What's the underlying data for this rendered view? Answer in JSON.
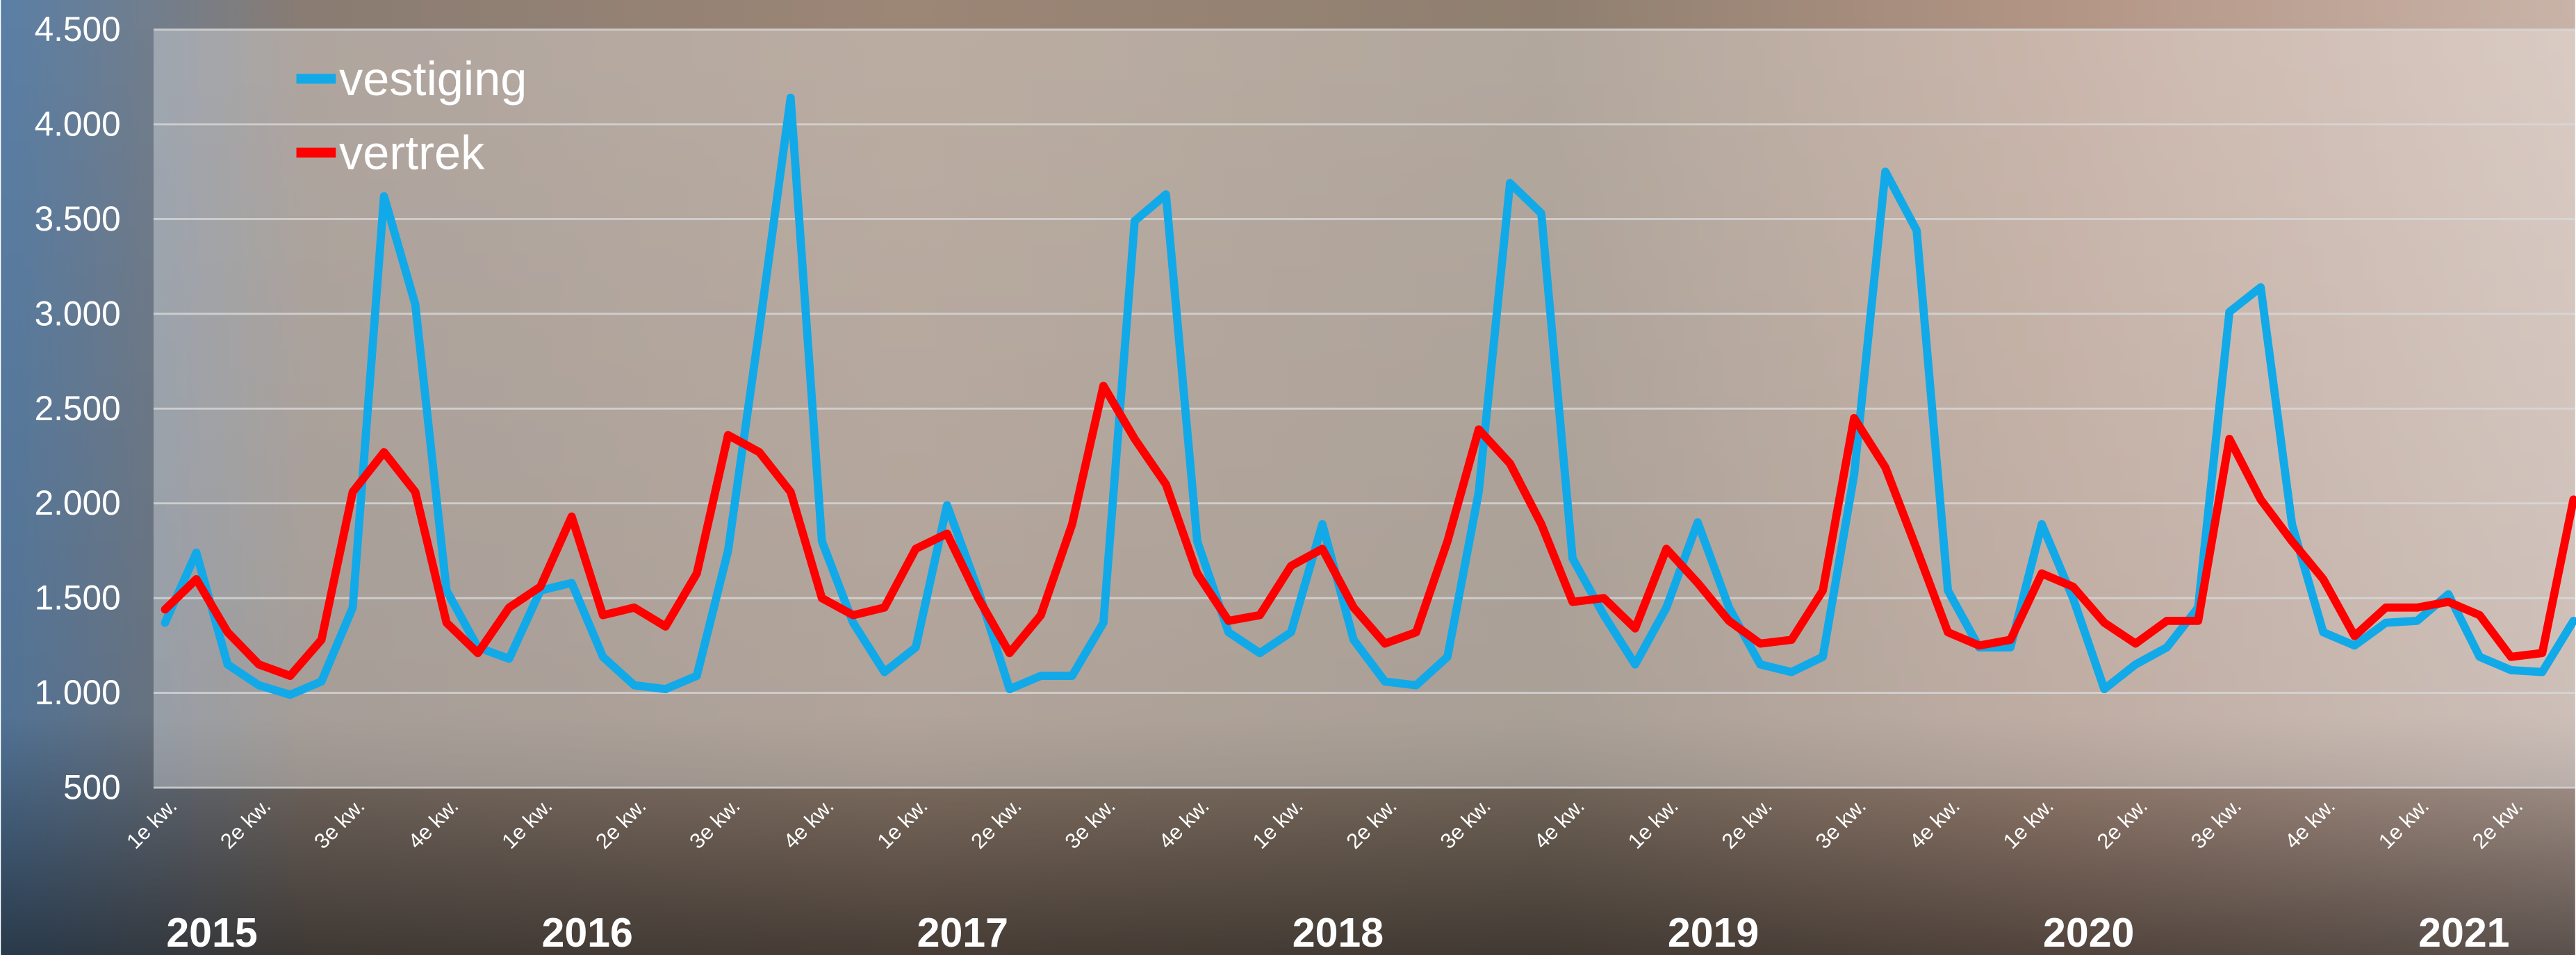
{
  "chart_data": {
    "type": "line",
    "categories": [
      "1e kw.",
      null,
      null,
      "2e kw.",
      null,
      null,
      "3e kw.",
      null,
      null,
      "4e kw.",
      null,
      null,
      "1e kw.",
      null,
      null,
      "2e kw.",
      null,
      null,
      "3e kw.",
      null,
      null,
      "4e kw.",
      null,
      null,
      "1e kw.",
      null,
      null,
      "2e kw.",
      null,
      null,
      "3e kw.",
      null,
      null,
      "4e kw.",
      null,
      null,
      "1e kw.",
      null,
      null,
      "2e kw.",
      null,
      null,
      "3e kw.",
      null,
      null,
      "4e kw.",
      null,
      null,
      "1e kw.",
      null,
      null,
      "2e kw.",
      null,
      null,
      "3e kw.",
      null,
      null,
      "4e kw.",
      null,
      null,
      "1e kw.",
      null,
      null,
      "2e kw.",
      null,
      null,
      "3e kw.",
      null,
      null,
      "4e kw.",
      null,
      null,
      "1e kw.",
      null,
      null,
      "2e kw.",
      null,
      null
    ],
    "years": [
      "2015",
      "2016",
      "2017",
      "2018",
      "2019",
      "2020",
      "2021"
    ],
    "series": [
      {
        "name": "vestiging",
        "color": "#12a9e8",
        "values": [
          1370,
          1740,
          1150,
          1040,
          990,
          1060,
          1450,
          3620,
          3050,
          1540,
          1240,
          1180,
          1540,
          1580,
          1190,
          1040,
          1020,
          1090,
          1750,
          2920,
          4140,
          1800,
          1370,
          1110,
          1240,
          1990,
          1540,
          1020,
          1090,
          1090,
          1370,
          3490,
          3630,
          1800,
          1320,
          1210,
          1320,
          1890,
          1280,
          1060,
          1040,
          1190,
          2060,
          3690,
          3530,
          1710,
          1410,
          1150,
          1450,
          1900,
          1450,
          1150,
          1110,
          1190,
          2150,
          3750,
          3440,
          1540,
          1240,
          1240,
          1890,
          1500,
          1020,
          1150,
          1240,
          1450,
          3010,
          3140,
          1890,
          1320,
          1250,
          1370,
          1380,
          1520,
          1190,
          1120,
          1110,
          1380
        ]
      },
      {
        "name": "vertrek",
        "color": "#ff0000",
        "values": [
          1440,
          1600,
          1320,
          1150,
          1090,
          1280,
          2060,
          2270,
          2060,
          1370,
          1210,
          1450,
          1560,
          1930,
          1410,
          1450,
          1350,
          1630,
          2360,
          2270,
          2060,
          1500,
          1410,
          1450,
          1760,
          1840,
          1500,
          1210,
          1410,
          1890,
          2620,
          2340,
          2100,
          1630,
          1380,
          1410,
          1670,
          1760,
          1450,
          1260,
          1320,
          1800,
          2390,
          2210,
          1890,
          1480,
          1500,
          1340,
          1760,
          1580,
          1380,
          1260,
          1280,
          1540,
          2450,
          2190,
          1760,
          1320,
          1250,
          1280,
          1630,
          1560,
          1370,
          1260,
          1380,
          1380,
          2340,
          2020,
          1800,
          1600,
          1300,
          1450,
          1450,
          1480,
          1410,
          1190,
          1210,
          2020
        ]
      }
    ],
    "ylim": [
      500,
      4500
    ],
    "yticks": [
      500,
      {
        "value": 1000,
        "label": "1.000"
      },
      {
        "value": 1500,
        "label": "1.500"
      },
      {
        "value": 2000,
        "label": "2.000"
      },
      {
        "value": 2500,
        "label": "2.500"
      },
      {
        "value": 3000,
        "label": "3.000"
      },
      {
        "value": 3500,
        "label": "3.500"
      },
      {
        "value": 4000,
        "label": "4.000"
      },
      {
        "value": 4500,
        "label": "4.500"
      }
    ],
    "grid": true,
    "legend": "upper left"
  }
}
